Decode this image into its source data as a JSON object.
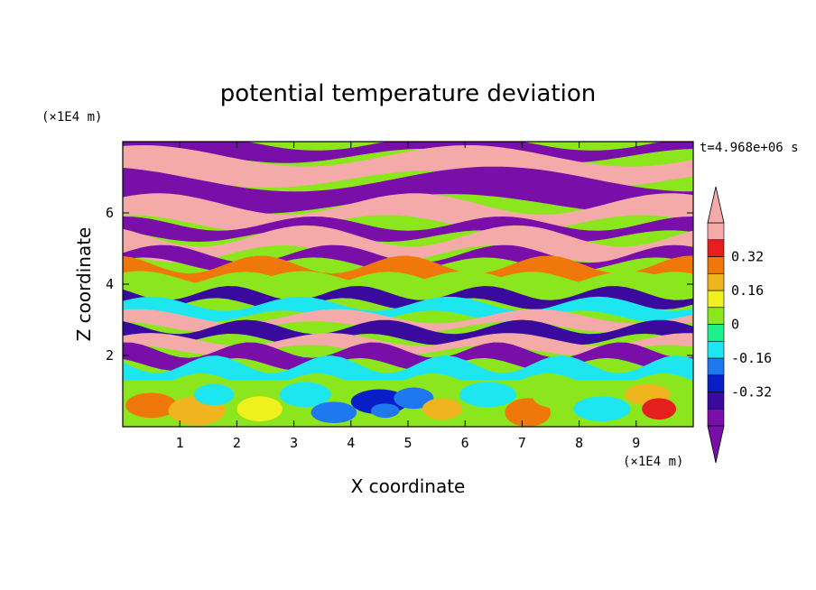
{
  "chart_data": {
    "type": "heatmap",
    "title": "potential temperature deviation",
    "xlabel": "X coordinate",
    "ylabel": "Z coordinate",
    "x_unit": "(×1E4 m)",
    "y_unit": "(×1E4 m)",
    "time_label": "t=4.968e+06 s",
    "xlim": [
      0,
      10
    ],
    "ylim": [
      0,
      8
    ],
    "x_ticks": [
      1,
      2,
      3,
      4,
      5,
      6,
      7,
      8,
      9
    ],
    "y_ticks": [
      2,
      4,
      6
    ],
    "colorbar": {
      "levels": [
        -0.48,
        -0.4,
        -0.32,
        -0.24,
        -0.16,
        -0.08,
        0,
        0.08,
        0.16,
        0.24,
        0.32,
        0.4
      ],
      "labels": [
        "0.32",
        "0.16",
        "0",
        "-0.16",
        "-0.32"
      ],
      "label_values": [
        0.32,
        0.16,
        0,
        -0.16,
        -0.32
      ],
      "colors": [
        "#7a0ea8",
        "#3a0a9e",
        "#0a1ec8",
        "#1e78f0",
        "#1ee6f0",
        "#1ef08c",
        "#8ce61e",
        "#f0f01e",
        "#f0b41e",
        "#f0780a",
        "#e61e1e",
        "#f5aaaa"
      ],
      "under_color": "#7a0ea8",
      "over_color": "#f5aaaa"
    }
  }
}
